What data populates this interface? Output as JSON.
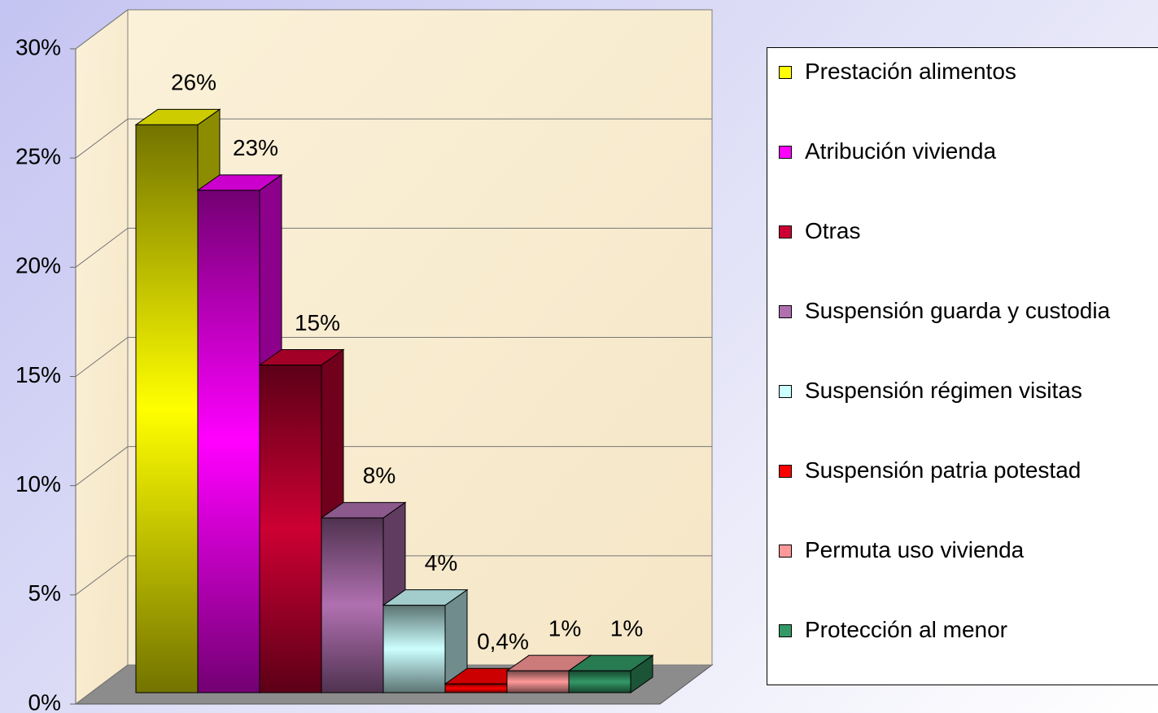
{
  "chart_data": {
    "type": "bar3d",
    "categories": [
      "Prestación alimentos",
      "Atribución vivienda",
      "Otras",
      "Suspensión guarda y custodia",
      "Suspensión régimen visitas",
      "Suspensión patria potestad",
      "Permuta uso vivienda",
      "Protección al menor"
    ],
    "values": [
      26,
      23,
      15,
      8,
      4,
      0.4,
      1,
      1
    ],
    "value_labels": [
      "26%",
      "23%",
      "15%",
      "8%",
      "4%",
      "0,4%",
      "1%",
      "1%"
    ],
    "colors": [
      "#ffff00",
      "#ff00ff",
      "#cc0033",
      "#b070b0",
      "#ccffff",
      "#ff0000",
      "#ff9999",
      "#339966"
    ],
    "ylim": [
      0,
      30
    ],
    "yticks": [
      {
        "value": 0,
        "label": "0%"
      },
      {
        "value": 5,
        "label": "5%"
      },
      {
        "value": 10,
        "label": "10%"
      },
      {
        "value": 15,
        "label": "15%"
      },
      {
        "value": 20,
        "label": "20%"
      },
      {
        "value": 25,
        "label": "25%"
      },
      {
        "value": 30,
        "label": "30%"
      }
    ],
    "grid": true
  }
}
